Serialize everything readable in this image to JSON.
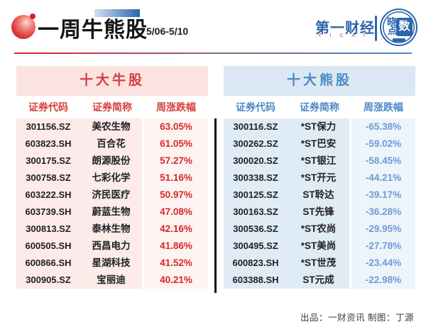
{
  "header": {
    "title": "一周牛熊股",
    "date_range": "5/06-5/10",
    "brand": "第一财经",
    "brand_sub": "Y I C A I",
    "badge": {
      "top": "晓",
      "right": "数",
      "bottom": "点"
    }
  },
  "chart_data": [
    {
      "type": "table",
      "title": "十大牛股",
      "columns": [
        "证券代码",
        "证券简称",
        "周涨跌幅"
      ],
      "rows": [
        [
          "301156.SZ",
          "美农生物",
          "63.05%"
        ],
        [
          "603823.SH",
          "百合花",
          "61.05%"
        ],
        [
          "300175.SZ",
          "朗源股份",
          "57.27%"
        ],
        [
          "300758.SZ",
          "七彩化学",
          "51.16%"
        ],
        [
          "603222.SH",
          "济民医疗",
          "50.97%"
        ],
        [
          "603739.SH",
          "蔚蓝生物",
          "47.08%"
        ],
        [
          "300813.SZ",
          "泰林生物",
          "42.16%"
        ],
        [
          "600505.SH",
          "西昌电力",
          "41.86%"
        ],
        [
          "600866.SH",
          "星湖科技",
          "41.52%"
        ],
        [
          "300905.SZ",
          "宝丽迪",
          "40.21%"
        ]
      ]
    },
    {
      "type": "table",
      "title": "十大熊股",
      "columns": [
        "证券代码",
        "证券简称",
        "周涨跌幅"
      ],
      "rows": [
        [
          "300116.SZ",
          "*ST保力",
          "-65.38%"
        ],
        [
          "300262.SZ",
          "*ST巴安",
          "-59.02%"
        ],
        [
          "300020.SZ",
          "*ST银江",
          "-58.45%"
        ],
        [
          "300338.SZ",
          "*ST开元",
          "-44.21%"
        ],
        [
          "300125.SZ",
          "ST聆达",
          "-39.17%"
        ],
        [
          "300163.SZ",
          "ST先锋",
          "-36.28%"
        ],
        [
          "300536.SZ",
          "*ST农尚",
          "-29.95%"
        ],
        [
          "300495.SZ",
          "*ST美尚",
          "-27.78%"
        ],
        [
          "600823.SH",
          "*ST世茂",
          "-23.44%"
        ],
        [
          "603388.SH",
          "ST元成",
          "-22.98%"
        ]
      ]
    }
  ],
  "footer": {
    "credits": "出品：一财资讯 制图：丁源"
  },
  "colors": {
    "bull_title": "#d4403c",
    "bull_banner_bg": "#fbe3e1",
    "bull_body_bg": "#fcebe9",
    "bull_pct_bg": "#fdf4f2",
    "bull_pct_text": "#d9252a",
    "bear_title": "#4d88c7",
    "bear_banner_bg": "#dbe8f3",
    "bear_body_bg": "#dfebf5",
    "bear_pct_bg": "#edf4fa",
    "bear_pct_text": "#6e9bd5",
    "brand_blue": "#2b66ad",
    "text_dark": "#202124"
  }
}
